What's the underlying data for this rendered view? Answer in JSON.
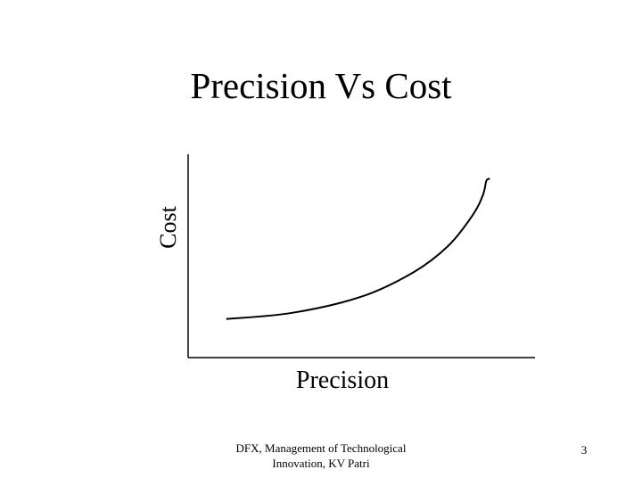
{
  "slide": {
    "title": "Precision Vs Cost",
    "footer_line1": "DFX, Management of Technological",
    "footer_line2": "Innovation, KV Patri",
    "page_number": "3"
  },
  "chart_data": {
    "type": "line",
    "title": "Precision Vs Cost",
    "xlabel": "Precision",
    "ylabel": "Cost",
    "x_ticks": [],
    "y_ticks": [],
    "grid": false,
    "legend": "none",
    "xlim": [
      0,
      1
    ],
    "ylim": [
      0,
      1
    ],
    "series": [
      {
        "x": [
          0.11,
          0.3,
          0.5,
          0.65,
          0.75,
          0.82,
          0.85,
          0.86,
          0.87
        ],
        "y": [
          0.19,
          0.22,
          0.3,
          0.42,
          0.55,
          0.7,
          0.8,
          0.87,
          0.88
        ]
      }
    ],
    "line_color": "#000000",
    "axis_color": "#000000"
  }
}
